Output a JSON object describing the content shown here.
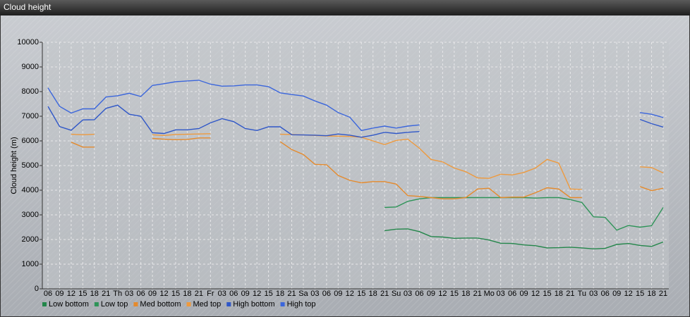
{
  "chart_data": {
    "type": "line",
    "title": "Cloud height",
    "y_label": "Cloud height (m)",
    "categories": [
      "06",
      "09",
      "12",
      "15",
      "18",
      "21",
      "Th",
      "03",
      "06",
      "09",
      "12",
      "15",
      "18",
      "21",
      "Fr",
      "03",
      "06",
      "09",
      "12",
      "15",
      "18",
      "21",
      "Sa",
      "03",
      "06",
      "09",
      "12",
      "15",
      "18",
      "21",
      "Su",
      "03",
      "06",
      "09",
      "12",
      "15",
      "18",
      "21",
      "Mo",
      "03",
      "06",
      "09",
      "12",
      "15",
      "18",
      "21",
      "Tu",
      "03",
      "06",
      "09",
      "12",
      "15",
      "18",
      "21"
    ],
    "ylim": [
      0,
      10000
    ],
    "yticks": [
      0,
      1000,
      2000,
      3000,
      4000,
      5000,
      6000,
      7000,
      8000,
      9000,
      10000
    ],
    "grid": true,
    "series": [
      {
        "name": "Low bottom",
        "color": "#23864a",
        "values": [
          null,
          null,
          null,
          null,
          null,
          null,
          null,
          null,
          null,
          null,
          null,
          null,
          null,
          null,
          null,
          null,
          null,
          null,
          null,
          null,
          null,
          null,
          null,
          null,
          null,
          null,
          null,
          null,
          null,
          2360,
          2420,
          2430,
          2320,
          2120,
          2100,
          2050,
          2060,
          2060,
          1980,
          1850,
          1840,
          1780,
          1750,
          1660,
          1670,
          1690,
          1660,
          1620,
          1640,
          1800,
          1840,
          1760,
          1720,
          1900
        ]
      },
      {
        "name": "Low top",
        "color": "#2e9458",
        "values": [
          null,
          null,
          null,
          null,
          null,
          null,
          null,
          null,
          null,
          null,
          null,
          null,
          null,
          null,
          null,
          null,
          null,
          null,
          null,
          null,
          null,
          null,
          null,
          null,
          null,
          null,
          null,
          null,
          null,
          3300,
          3320,
          3550,
          3650,
          3700,
          3700,
          3700,
          3700,
          3700,
          3700,
          3700,
          3700,
          3700,
          3680,
          3700,
          3700,
          3620,
          3500,
          2920,
          2900,
          2380,
          2570,
          2500,
          2560,
          3300
        ]
      },
      {
        "name": "Med bottom",
        "color": "#e58a2c",
        "values": [
          null,
          null,
          5950,
          5750,
          5750,
          null,
          null,
          null,
          null,
          6100,
          6070,
          6050,
          6060,
          6120,
          6120,
          null,
          null,
          null,
          null,
          null,
          5970,
          5650,
          5450,
          5050,
          5030,
          4600,
          4400,
          4300,
          4350,
          4350,
          4250,
          3780,
          3750,
          3700,
          3650,
          3650,
          3700,
          4050,
          4080,
          3700,
          3720,
          3720,
          3900,
          4100,
          4050,
          3700,
          3700,
          null,
          null,
          null,
          null,
          4150,
          3980,
          4080
        ]
      },
      {
        "name": "Med top",
        "color": "#ee9a3e",
        "values": [
          null,
          null,
          6270,
          6250,
          6270,
          null,
          null,
          null,
          null,
          6250,
          6220,
          6260,
          6270,
          6280,
          6290,
          null,
          null,
          null,
          null,
          null,
          6270,
          6260,
          6240,
          6220,
          6200,
          6190,
          6180,
          6150,
          6000,
          5850,
          6020,
          6070,
          5700,
          5250,
          5150,
          4900,
          4750,
          4500,
          4480,
          4650,
          4620,
          4720,
          4900,
          5250,
          5100,
          4050,
          4030,
          null,
          null,
          null,
          null,
          4950,
          4920,
          4700
        ]
      },
      {
        "name": "High bottom",
        "color": "#2f57c8",
        "values": [
          7400,
          6580,
          6430,
          6850,
          6860,
          7320,
          7450,
          7080,
          7000,
          6330,
          6300,
          6450,
          6450,
          6500,
          6730,
          6900,
          6780,
          6500,
          6420,
          6570,
          6570,
          6250,
          6240,
          6230,
          6210,
          6280,
          6230,
          6150,
          6230,
          6350,
          6300,
          6350,
          6380,
          null,
          null,
          null,
          null,
          null,
          null,
          null,
          null,
          null,
          null,
          null,
          null,
          null,
          null,
          null,
          null,
          null,
          null,
          6870,
          6700,
          6560
        ]
      },
      {
        "name": "High top",
        "color": "#3b66dc",
        "values": [
          8150,
          7400,
          7130,
          7300,
          7300,
          7780,
          7830,
          7930,
          7800,
          8250,
          8320,
          8400,
          8430,
          8460,
          8300,
          8220,
          8230,
          8270,
          8270,
          8200,
          7950,
          7880,
          7820,
          7620,
          7450,
          7150,
          6960,
          6420,
          6520,
          6600,
          6520,
          6600,
          6650,
          null,
          null,
          null,
          null,
          null,
          null,
          null,
          null,
          null,
          null,
          null,
          null,
          null,
          null,
          null,
          null,
          null,
          null,
          7150,
          7080,
          6950
        ]
      }
    ]
  }
}
